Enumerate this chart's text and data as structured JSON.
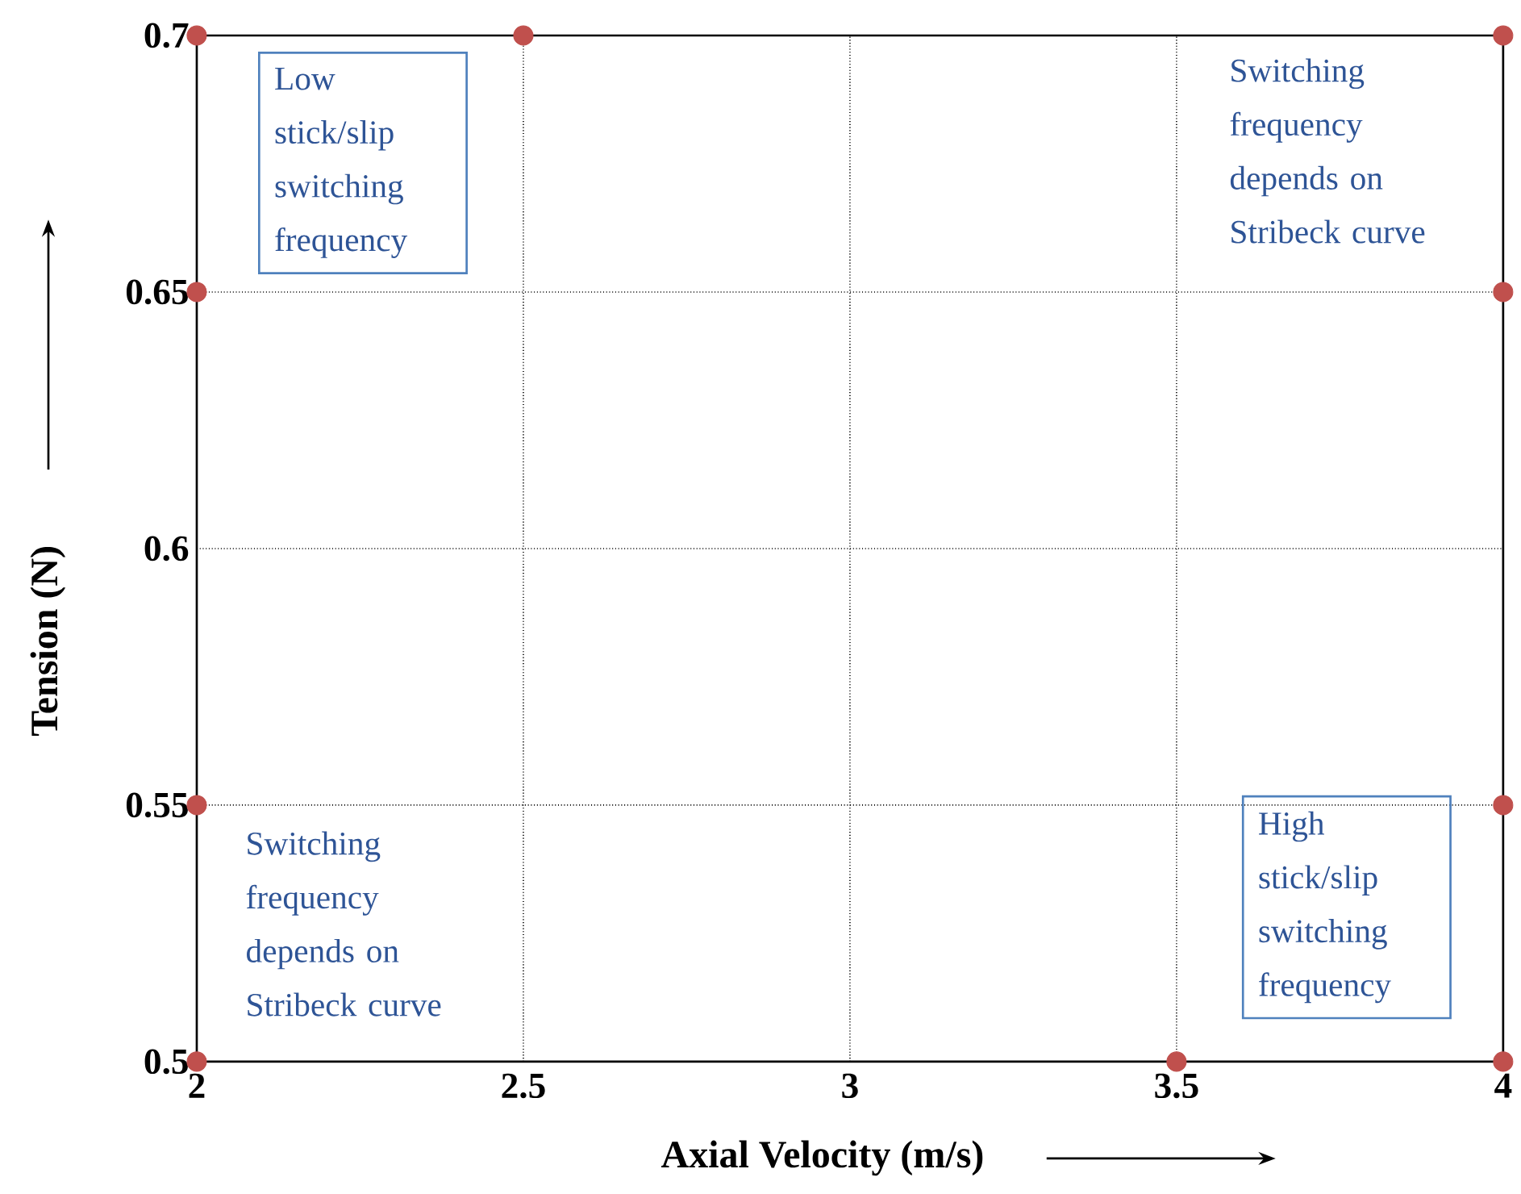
{
  "chart_data": {
    "type": "scatter",
    "xlabel": "Axial Velocity (m/s)",
    "ylabel": "Tension (N)",
    "x": [
      2,
      2.5,
      4,
      2,
      4,
      2,
      4,
      2,
      3.5,
      4
    ],
    "values": [
      0.7,
      0.7,
      0.7,
      0.65,
      0.65,
      0.55,
      0.55,
      0.5,
      0.5,
      0.5
    ],
    "color": "#c0504d",
    "marker": "circle",
    "xlim": [
      2,
      4
    ],
    "ylim": [
      0.5,
      0.7
    ],
    "xticks": [
      2,
      2.5,
      3,
      3.5,
      4
    ],
    "yticks": [
      0.5,
      0.55,
      0.6,
      0.65,
      0.7
    ],
    "grid": true,
    "annotations": [
      "Low stick/slip switching frequency",
      "Switching frequency depends on Stribeck curve",
      "Switching frequency depends on Stribeck curve",
      "High stick/slip switching frequency"
    ]
  }
}
